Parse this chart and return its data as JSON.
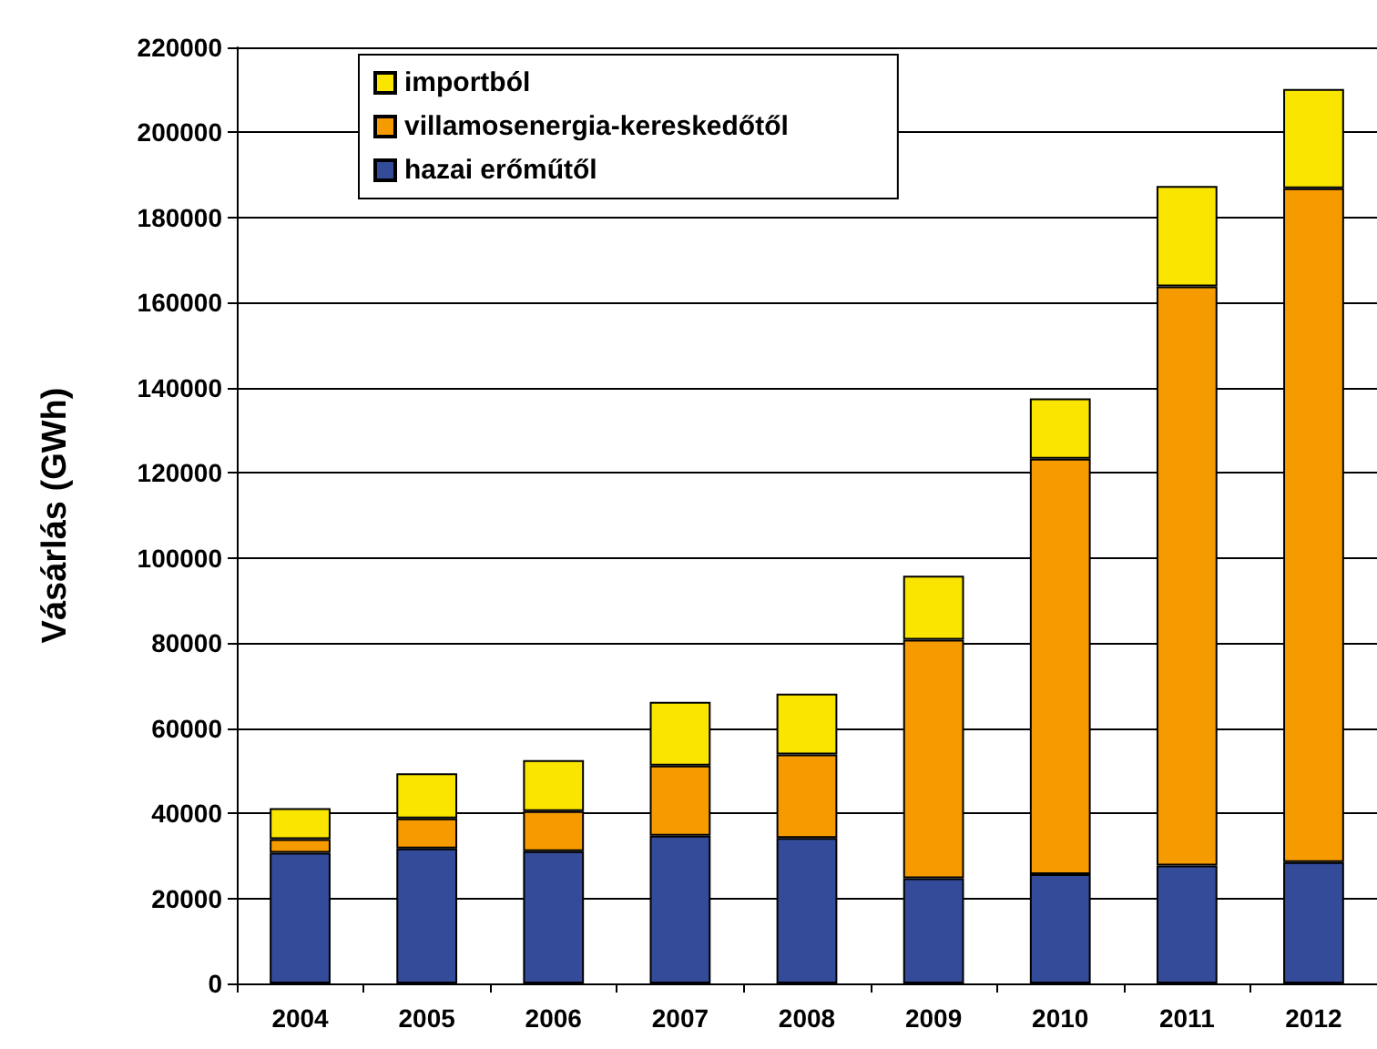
{
  "chart_data": {
    "type": "bar",
    "stacked": true,
    "ylabel": "Vásárlás (GWh)",
    "categories": [
      "2004",
      "2005",
      "2006",
      "2007",
      "2008",
      "2009",
      "2010",
      "2011",
      "2012"
    ],
    "series": [
      {
        "name": "hazai erőműtől",
        "color": "#334b99",
        "values": [
          30700,
          31700,
          31100,
          34700,
          34200,
          24700,
          25700,
          27700,
          28500
        ]
      },
      {
        "name": "villamosenergia-kereskedőtől",
        "color": "#f59b00",
        "values": [
          3200,
          7100,
          9400,
          16500,
          19600,
          56100,
          97600,
          136100,
          158400
        ]
      },
      {
        "name": "importból",
        "color": "#f9e500",
        "values": [
          7300,
          10600,
          12000,
          15000,
          14300,
          15000,
          14200,
          23600,
          23300
        ]
      }
    ],
    "ylim": [
      0,
      220000
    ],
    "yticks": [
      0,
      20000,
      40000,
      60000,
      80000,
      100000,
      120000,
      140000,
      160000,
      180000,
      200000,
      220000
    ],
    "grid": "y",
    "legend": "top left"
  }
}
